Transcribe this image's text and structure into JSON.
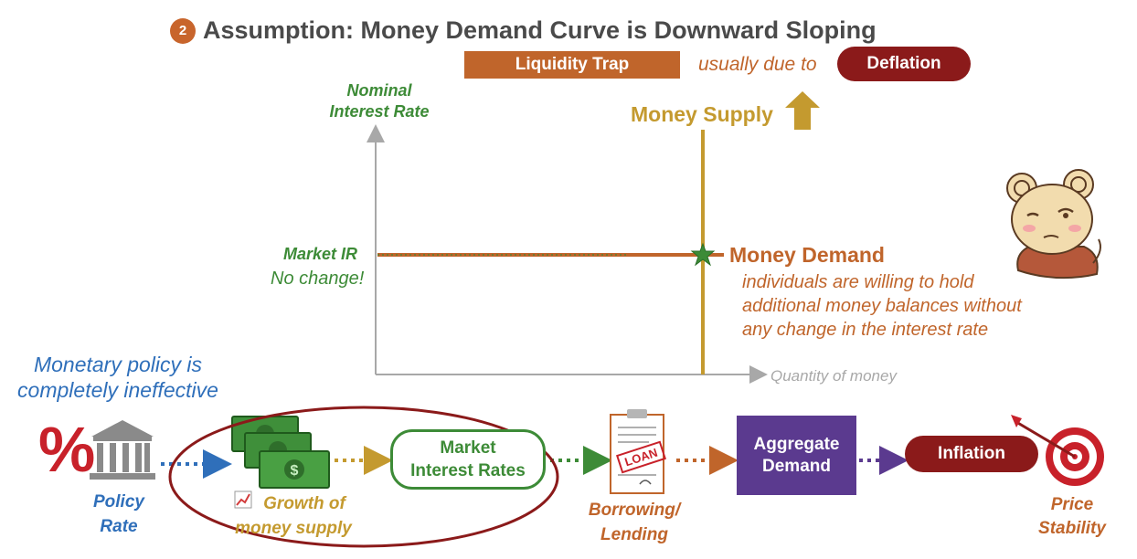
{
  "header": {
    "step_number": "2",
    "title": "Assumption: Money Demand Curve is Downward Sloping",
    "liquidity_trap_label": "Liquidity Trap",
    "usually_due_to": "usually due to",
    "deflation_label": "Deflation"
  },
  "graph": {
    "y_axis_label_line1": "Nominal",
    "y_axis_label_line2": "Interest Rate",
    "x_axis_label": "Quantity of money",
    "money_supply_label": "Money Supply",
    "market_ir_label": "Market IR",
    "no_change_label": "No change!",
    "money_demand_label": "Money Demand",
    "money_demand_desc_line1": "individuals are willing to hold",
    "money_demand_desc_line2": "additional money balances without",
    "money_demand_desc_line3": "any change in the interest rate"
  },
  "flow": {
    "ineffective_line1": "Monetary policy is",
    "ineffective_line2": "completely ineffective",
    "percent_symbol": "%",
    "policy_rate_line1": "Policy",
    "policy_rate_line2": "Rate",
    "growth_line1": "Growth of",
    "growth_line2": "money supply",
    "market_rates_line1": "Market",
    "market_rates_line2": "Interest Rates",
    "loan_stamp": "LOAN",
    "borrowing_line1": "Borrowing/",
    "borrowing_line2": "Lending",
    "aggregate_line1": "Aggregate",
    "aggregate_line2": "Demand",
    "inflation_label": "Inflation",
    "price_line1": "Price",
    "price_line2": "Stability"
  },
  "colors": {
    "green": "#3d8b37",
    "orange": "#c0652b",
    "gold": "#c49a2f",
    "maroon": "#8b1a1a",
    "purple": "#5b3a8f",
    "blue": "#2f6fba",
    "gray_axis": "#a8a8a8"
  }
}
